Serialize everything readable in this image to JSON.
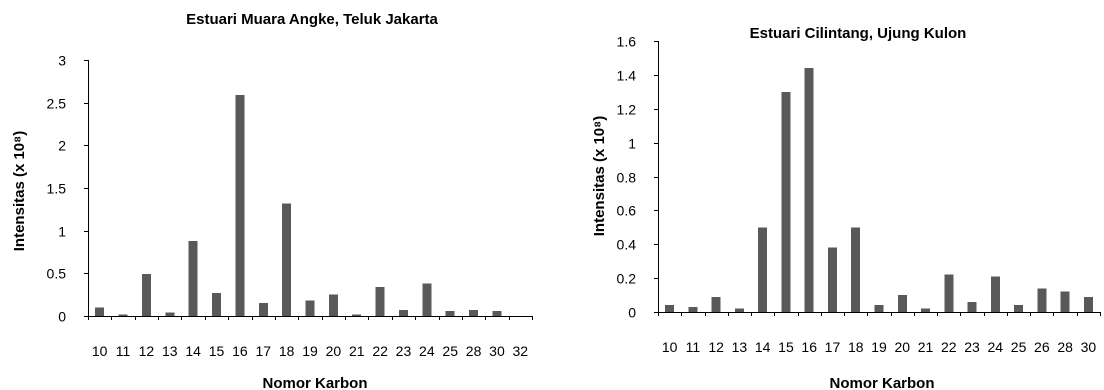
{
  "chart_data": [
    {
      "type": "bar",
      "title": "Estuari Muara Angke, Teluk Jakarta",
      "xlabel": "Nomor Karbon",
      "ylabel": "Intensitas (x 10⁸)",
      "ylim": [
        0,
        3
      ],
      "yticks": [
        "0",
        "0.5",
        "1",
        "1.5",
        "2",
        "2.5",
        "3"
      ],
      "yticks_values": [
        0,
        0.5,
        1,
        1.5,
        2,
        2.5,
        3
      ],
      "categories": [
        "10",
        "11",
        "12",
        "13",
        "14",
        "15",
        "16",
        "17",
        "18",
        "19",
        "20",
        "21",
        "22",
        "23",
        "24",
        "25",
        "28",
        "30",
        "32"
      ],
      "values": [
        0.1,
        0.02,
        0.49,
        0.04,
        0.88,
        0.27,
        2.59,
        0.15,
        1.32,
        0.18,
        0.25,
        0.02,
        0.34,
        0.07,
        0.38,
        0.06,
        0.07,
        0.06,
        0.0
      ],
      "color": "#595959",
      "grid": false,
      "legend": "none"
    },
    {
      "type": "bar",
      "title": "Estuari Cilintang, Ujung Kulon",
      "xlabel": "Nomor Karbon",
      "ylabel": "Intensitas (x 10⁸)",
      "ylim": [
        0,
        1.6
      ],
      "yticks": [
        "0",
        "0.2",
        "0.4",
        "0.6",
        "0.8",
        "1",
        "1.2",
        "1.4",
        "1.6"
      ],
      "yticks_values": [
        0,
        0.2,
        0.4,
        0.6,
        0.8,
        1.0,
        1.2,
        1.4,
        1.6
      ],
      "categories": [
        "10",
        "11",
        "12",
        "13",
        "14",
        "15",
        "16",
        "17",
        "18",
        "19",
        "20",
        "21",
        "22",
        "23",
        "24",
        "25",
        "26",
        "28",
        "30"
      ],
      "values": [
        0.04,
        0.03,
        0.09,
        0.02,
        0.5,
        1.3,
        1.44,
        0.38,
        0.5,
        0.04,
        0.1,
        0.02,
        0.22,
        0.06,
        0.21,
        0.04,
        0.14,
        0.12,
        0.09
      ],
      "color": "#595959",
      "grid": false,
      "legend": "none"
    }
  ]
}
